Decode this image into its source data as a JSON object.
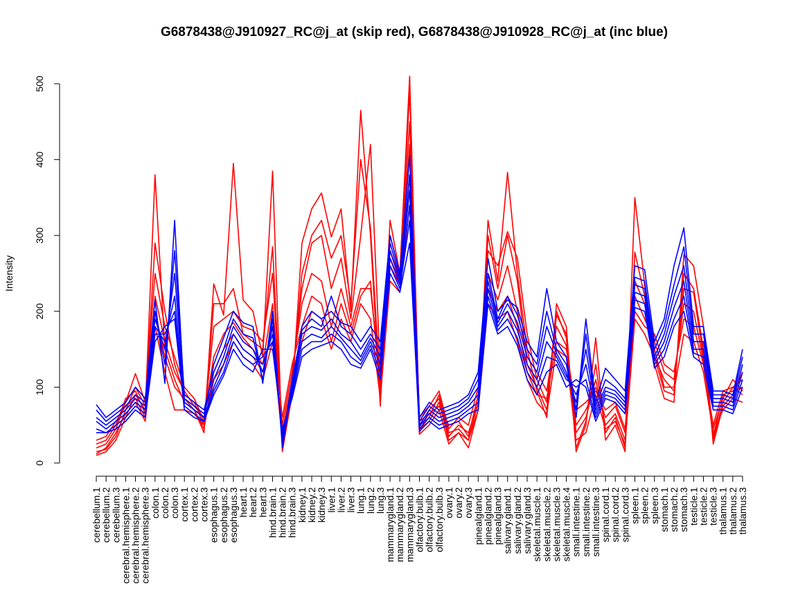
{
  "chart_data": {
    "type": "line",
    "title": "G6878438@J910927_RC@j_at (skip red), G6878438@J910928_RC@j_at (inc blue)",
    "xlabel": "",
    "ylabel": "Intensity",
    "ylim": [
      0,
      500
    ],
    "yticks": [
      0,
      100,
      200,
      300,
      400,
      500
    ],
    "grid": false,
    "categories": [
      "cerebellum.1",
      "cerebellum.2",
      "cerebellum.3",
      "cerebral.hemisphere.1",
      "cerebral.hemisphere.2",
      "cerebral.hemisphere.3",
      "colon.1",
      "colon.2",
      "colon.3",
      "cortex.1",
      "cortex.2",
      "cortex.3",
      "esophagus.1",
      "esophagus.2",
      "esophagus.3",
      "heart.1",
      "heart.2",
      "heart.3",
      "hind.brain.1",
      "hind.brain.2",
      "hind.brain.3",
      "kidney.1",
      "kidney.2",
      "kidney.3",
      "liver.1",
      "liver.2",
      "liver.3",
      "lung.1",
      "lung.2",
      "lung.3",
      "mammarygland.1",
      "mammarygland.2",
      "mammarygland.3",
      "olfactory.bulb.1",
      "olfactory.bulb.2",
      "olfactory.bulb.3",
      "ovary.1",
      "ovary.2",
      "ovary.3",
      "pinealgland.1",
      "pinealgland.2",
      "pinealgland.3",
      "salivary.gland.1",
      "salivary.gland.2",
      "salivary.gland.3",
      "skeletal.muscle.1",
      "skeletal.muscle.2",
      "skeletal.muscle.3",
      "skeletal.muscle.4",
      "small.intestine.1",
      "small.intestine.2",
      "small.intestine.3",
      "spinal.cord.1",
      "spinal.cord.2",
      "spinal.cord.3",
      "spleen.1",
      "spleen.2",
      "spleen.3",
      "stomach.1",
      "stomach.2",
      "stomach.3",
      "testicle.1",
      "testicle.2",
      "testicle.3",
      "thalamus.1",
      "thalamus.2",
      "thalamus.3"
    ],
    "series": [
      {
        "color": "#ff0000",
        "values": [
          10,
          15,
          30,
          60,
          90,
          70,
          380,
          150,
          110,
          80,
          70,
          40,
          236,
          195,
          395,
          215,
          200,
          140,
          385,
          15,
          90,
          290,
          335,
          356,
          298,
          335,
          200,
          465,
          300,
          75,
          320,
          250,
          510,
          45,
          55,
          80,
          30,
          40,
          20,
          70,
          320,
          240,
          383,
          250,
          150,
          95,
          60,
          210,
          180,
          15,
          50,
          165,
          30,
          50,
          15,
          350,
          235,
          130,
          85,
          80,
          275,
          260,
          180,
          25,
          75,
          90,
          120
        ]
      },
      {
        "color": "#ff0000",
        "values": [
          15,
          18,
          35,
          70,
          100,
          75,
          290,
          200,
          130,
          90,
          80,
          50,
          210,
          210,
          230,
          170,
          160,
          150,
          285,
          25,
          100,
          250,
          300,
          320,
          270,
          300,
          210,
          400,
          310,
          100,
          300,
          250,
          490,
          50,
          60,
          90,
          40,
          45,
          30,
          80,
          300,
          230,
          300,
          240,
          130,
          100,
          70,
          195,
          170,
          20,
          55,
          130,
          40,
          60,
          20,
          278,
          220,
          140,
          95,
          90,
          250,
          230,
          150,
          30,
          80,
          100,
          110
        ]
      },
      {
        "color": "#ff0000",
        "values": [
          20,
          25,
          45,
          80,
          118,
          80,
          250,
          180,
          140,
          100,
          85,
          55,
          180,
          190,
          200,
          180,
          175,
          160,
          250,
          40,
          110,
          230,
          290,
          300,
          230,
          270,
          190,
          300,
          420,
          120,
          280,
          245,
          450,
          55,
          65,
          75,
          50,
          55,
          35,
          90,
          280,
          260,
          305,
          270,
          170,
          110,
          80,
          200,
          165,
          40,
          60,
          110,
          50,
          65,
          30,
          240,
          210,
          150,
          100,
          100,
          230,
          225,
          140,
          35,
          90,
          95,
          100
        ]
      },
      {
        "color": "#ff0000",
        "values": [
          25,
          30,
          50,
          85,
          95,
          65,
          220,
          160,
          120,
          95,
          75,
          60,
          140,
          170,
          185,
          165,
          150,
          130,
          210,
          50,
          120,
          210,
          250,
          240,
          180,
          230,
          180,
          230,
          230,
          110,
          270,
          240,
          420,
          60,
          75,
          95,
          45,
          60,
          50,
          100,
          250,
          215,
          260,
          200,
          140,
          120,
          95,
          180,
          155,
          50,
          70,
          100,
          60,
          75,
          40,
          220,
          190,
          160,
          120,
          110,
          210,
          200,
          135,
          45,
          85,
          110,
          95
        ]
      },
      {
        "color": "#ff0000",
        "values": [
          30,
          35,
          55,
          75,
          85,
          60,
          200,
          140,
          100,
          85,
          70,
          45,
          120,
          150,
          170,
          150,
          140,
          120,
          180,
          60,
          130,
          180,
          220,
          210,
          160,
          210,
          170,
          220,
          240,
          90,
          260,
          235,
          380,
          40,
          70,
          85,
          35,
          50,
          40,
          80,
          230,
          200,
          220,
          180,
          120,
          90,
          85,
          160,
          150,
          70,
          80,
          95,
          70,
          80,
          45,
          200,
          180,
          170,
          130,
          120,
          190,
          180,
          130,
          50,
          95,
          100,
          90
        ]
      },
      {
        "color": "#ff0000",
        "values": [
          12,
          20,
          40,
          65,
          80,
          55,
          180,
          120,
          70,
          70,
          65,
          50,
          110,
          130,
          160,
          140,
          130,
          110,
          160,
          30,
          100,
          160,
          200,
          190,
          150,
          190,
          160,
          210,
          190,
          85,
          240,
          225,
          340,
          38,
          50,
          70,
          25,
          40,
          30,
          70,
          210,
          190,
          200,
          160,
          110,
          80,
          65,
          150,
          140,
          30,
          40,
          90,
          45,
          55,
          25,
          190,
          170,
          140,
          110,
          95,
          170,
          160,
          120,
          40,
          70,
          85,
          80
        ]
      },
      {
        "color": "#0000ff",
        "values": [
          77,
          60,
          70,
          80,
          100,
          85,
          215,
          105,
          320,
          80,
          70,
          60,
          130,
          165,
          200,
          185,
          180,
          105,
          200,
          20,
          100,
          180,
          200,
          190,
          200,
          185,
          180,
          160,
          180,
          160,
          300,
          250,
          405,
          60,
          80,
          70,
          75,
          80,
          90,
          120,
          270,
          200,
          215,
          205,
          160,
          140,
          230,
          160,
          140,
          60,
          190,
          80,
          125,
          110,
          95,
          260,
          255,
          160,
          190,
          260,
          310,
          180,
          180,
          95,
          95,
          90,
          150
        ]
      },
      {
        "color": "#0000ff",
        "values": [
          70,
          55,
          65,
          75,
          90,
          80,
          200,
          130,
          280,
          90,
          80,
          70,
          120,
          150,
          190,
          170,
          165,
          110,
          190,
          25,
          110,
          175,
          190,
          180,
          220,
          180,
          170,
          150,
          170,
          150,
          290,
          245,
          380,
          55,
          75,
          65,
          70,
          75,
          85,
          110,
          250,
          190,
          220,
          195,
          150,
          130,
          200,
          150,
          130,
          70,
          170,
          75,
          110,
          100,
          85,
          245,
          240,
          150,
          180,
          235,
          285,
          170,
          170,
          90,
          90,
          85,
          140
        ]
      },
      {
        "color": "#0000ff",
        "values": [
          60,
          50,
          60,
          70,
          85,
          75,
          190,
          150,
          250,
          85,
          75,
          65,
          110,
          140,
          180,
          160,
          150,
          120,
          180,
          30,
          100,
          170,
          180,
          175,
          190,
          170,
          160,
          140,
          165,
          140,
          280,
          240,
          360,
          50,
          70,
          60,
          65,
          70,
          80,
          100,
          240,
          185,
          210,
          185,
          140,
          120,
          180,
          145,
          120,
          80,
          150,
          70,
          100,
          95,
          80,
          235,
          230,
          140,
          170,
          220,
          260,
          160,
          160,
          85,
          85,
          80,
          130
        ]
      },
      {
        "color": "#0000ff",
        "values": [
          55,
          45,
          55,
          65,
          80,
          70,
          180,
          160,
          220,
          80,
          70,
          60,
          100,
          130,
          170,
          150,
          140,
          130,
          170,
          35,
          95,
          160,
          170,
          165,
          180,
          165,
          150,
          135,
          160,
          130,
          270,
          235,
          340,
          48,
          65,
          55,
          60,
          65,
          75,
          90,
          230,
          180,
          200,
          175,
          130,
          110,
          160,
          140,
          115,
          90,
          130,
          65,
          95,
          90,
          75,
          225,
          220,
          135,
          160,
          205,
          240,
          150,
          150,
          80,
          80,
          75,
          120
        ]
      },
      {
        "color": "#0000ff",
        "values": [
          45,
          40,
          50,
          60,
          75,
          65,
          170,
          170,
          200,
          75,
          65,
          55,
          95,
          120,
          160,
          140,
          130,
          140,
          160,
          40,
          90,
          150,
          160,
          160,
          170,
          160,
          140,
          130,
          155,
          120,
          260,
          230,
          320,
          45,
          60,
          50,
          55,
          60,
          70,
          80,
          220,
          175,
          190,
          165,
          120,
          100,
          140,
          135,
          110,
          100,
          110,
          60,
          90,
          85,
          70,
          215,
          210,
          130,
          150,
          190,
          220,
          145,
          140,
          75,
          75,
          70,
          110
        ]
      },
      {
        "color": "#0000ff",
        "values": [
          40,
          40,
          45,
          55,
          70,
          60,
          160,
          180,
          190,
          70,
          60,
          55,
          90,
          115,
          150,
          130,
          120,
          150,
          150,
          45,
          85,
          140,
          150,
          155,
          160,
          150,
          130,
          125,
          150,
          110,
          250,
          225,
          290,
          42,
          55,
          45,
          50,
          55,
          65,
          70,
          210,
          170,
          180,
          155,
          110,
          90,
          120,
          130,
          100,
          110,
          100,
          55,
          85,
          80,
          65,
          205,
          200,
          125,
          140,
          180,
          200,
          140,
          130,
          70,
          70,
          65,
          100
        ]
      }
    ]
  }
}
